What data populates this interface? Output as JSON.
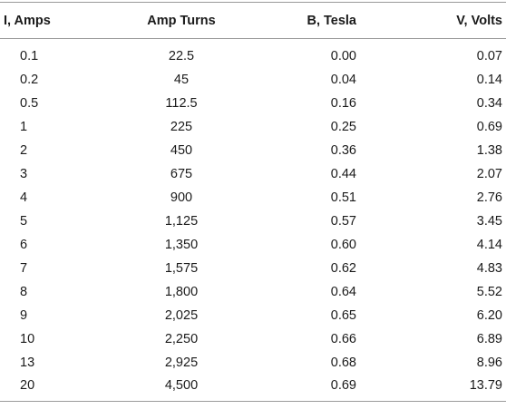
{
  "table": {
    "headers": [
      "I, Amps",
      "Amp Turns",
      "B, Tesla",
      "V, Volts"
    ],
    "rows": [
      [
        "0.1",
        "22.5",
        "0.00",
        "0.07"
      ],
      [
        "0.2",
        "45",
        "0.04",
        "0.14"
      ],
      [
        "0.5",
        "112.5",
        "0.16",
        "0.34"
      ],
      [
        "1",
        "225",
        "0.25",
        "0.69"
      ],
      [
        "2",
        "450",
        "0.36",
        "1.38"
      ],
      [
        "3",
        "675",
        "0.44",
        "2.07"
      ],
      [
        "4",
        "900",
        "0.51",
        "2.76"
      ],
      [
        "5",
        "1,125",
        "0.57",
        "3.45"
      ],
      [
        "6",
        "1,350",
        "0.60",
        "4.14"
      ],
      [
        "7",
        "1,575",
        "0.62",
        "4.83"
      ],
      [
        "8",
        "1,800",
        "0.64",
        "5.52"
      ],
      [
        "9",
        "2,025",
        "0.65",
        "6.20"
      ],
      [
        "10",
        "2,250",
        "0.66",
        "6.89"
      ],
      [
        "13",
        "2,925",
        "0.68",
        "8.96"
      ],
      [
        "20",
        "4,500",
        "0.69",
        "13.79"
      ]
    ]
  }
}
